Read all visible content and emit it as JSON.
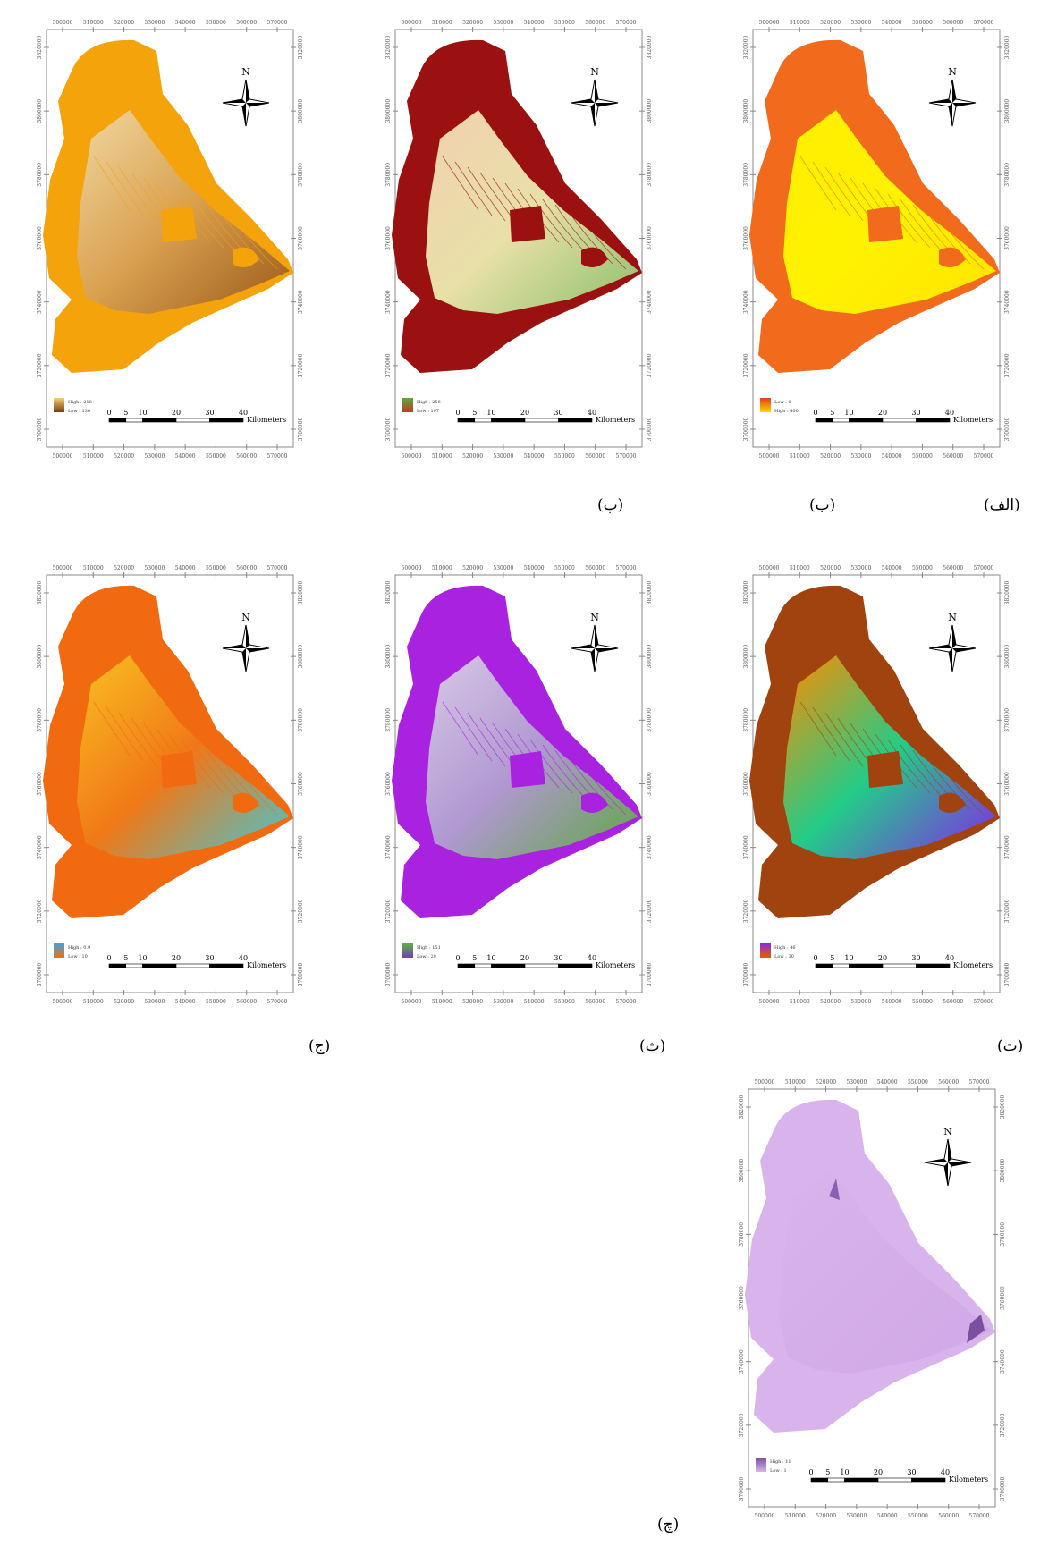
{
  "map_axes": {
    "x_ticks": [
      500000,
      510000,
      520000,
      530000,
      540000,
      550000,
      560000,
      570000
    ],
    "y_ticks": [
      3820000,
      3800000,
      3780000,
      3760000,
      3740000,
      3720000,
      3700000
    ]
  },
  "north": "N",
  "scale_bar": {
    "ticks": [
      0,
      5,
      10,
      20,
      30,
      40
    ],
    "unit": "Kilometers"
  },
  "panels": [
    {
      "label": "(الف)",
      "legend": [
        "Low : 0",
        "High : 400"
      ]
    },
    {
      "label": "(ب)",
      "legend": [
        "High : 256",
        "Low : 197"
      ]
    },
    {
      "label": "(پ)",
      "legend": [
        "High : 218",
        "Low : 130"
      ]
    },
    {
      "label": "(ت)",
      "legend": [
        "High : 46",
        "Low : 30"
      ]
    },
    {
      "label": "(ث)",
      "legend": [
        "High : 151",
        "Low : 29"
      ]
    },
    {
      "label": "(ج)",
      "legend": [
        "High : 0.9",
        "Low : 10"
      ]
    },
    {
      "label": "(چ)",
      "legend": [
        "High : 11",
        "Low : 1"
      ]
    }
  ]
}
